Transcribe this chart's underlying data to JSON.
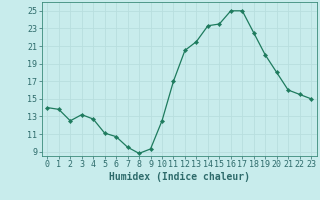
{
  "x": [
    0,
    1,
    2,
    3,
    4,
    5,
    6,
    7,
    8,
    9,
    10,
    11,
    12,
    13,
    14,
    15,
    16,
    17,
    18,
    19,
    20,
    21,
    22,
    23
  ],
  "y": [
    14.0,
    13.8,
    12.5,
    13.2,
    12.7,
    11.1,
    10.7,
    9.5,
    8.8,
    9.3,
    12.5,
    17.0,
    20.5,
    21.5,
    23.3,
    23.5,
    25.0,
    25.0,
    22.5,
    20.0,
    18.0,
    16.0,
    15.5,
    15.0
  ],
  "line_color": "#1e7b5e",
  "marker": "D",
  "marker_size": 2.2,
  "bg_color": "#c8ecec",
  "grid_color": "#b8dede",
  "xlabel": "Humidex (Indice chaleur)",
  "ylim": [
    8.5,
    26.0
  ],
  "xlim": [
    -0.5,
    23.5
  ],
  "yticks": [
    9,
    11,
    13,
    15,
    17,
    19,
    21,
    23,
    25
  ],
  "xticks": [
    0,
    1,
    2,
    3,
    4,
    5,
    6,
    7,
    8,
    9,
    10,
    11,
    12,
    13,
    14,
    15,
    16,
    17,
    18,
    19,
    20,
    21,
    22,
    23
  ],
  "xlabel_fontsize": 7.0,
  "tick_fontsize": 6.0
}
